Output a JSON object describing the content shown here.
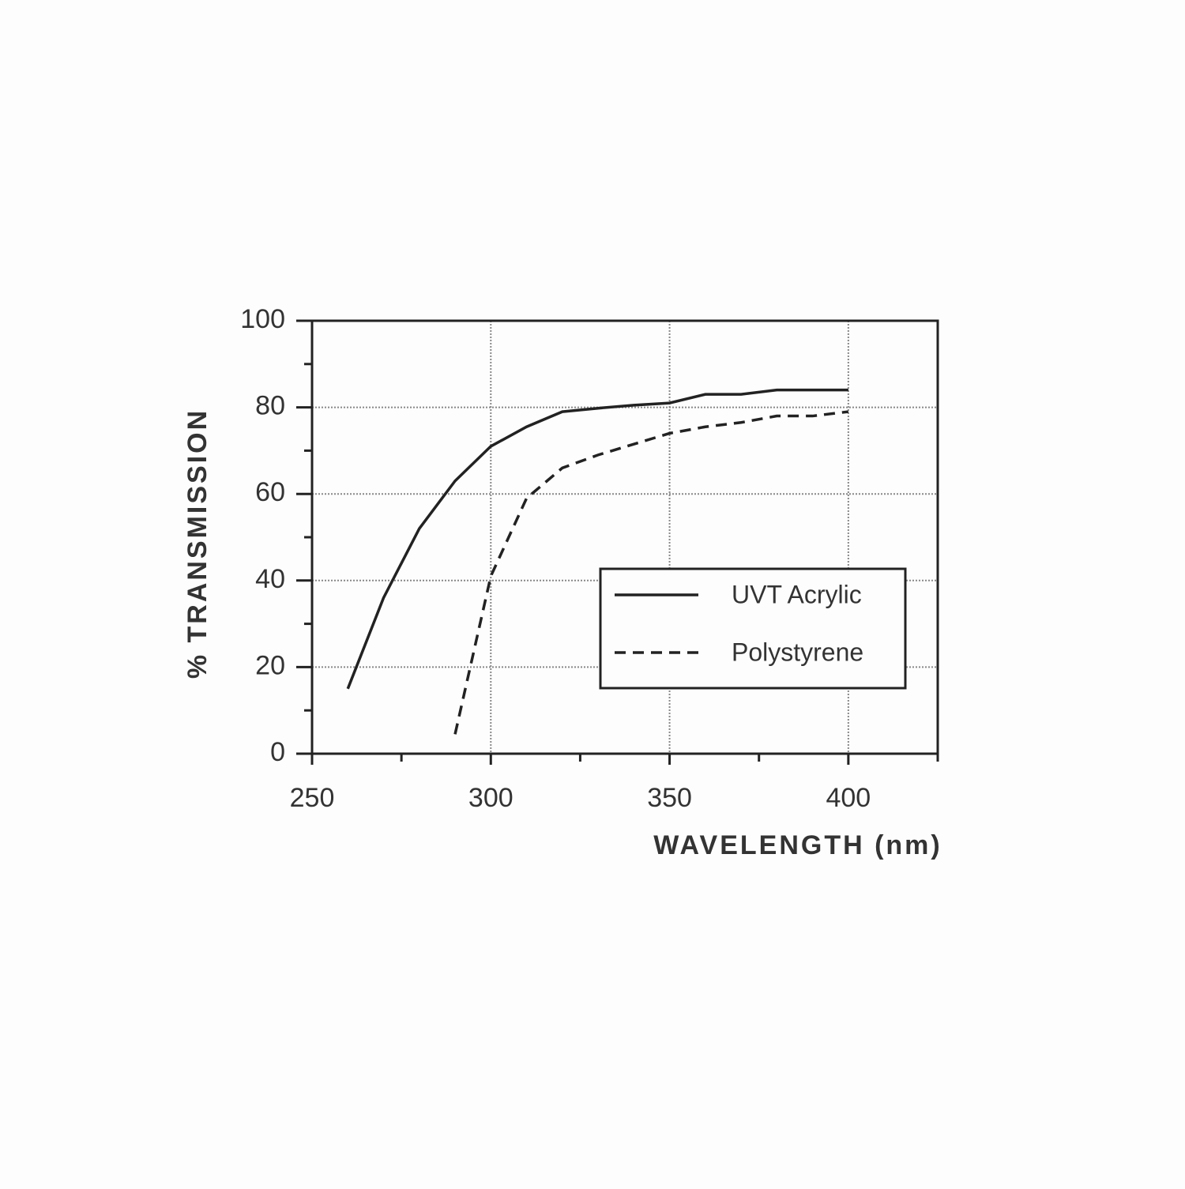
{
  "chart_data": {
    "type": "line",
    "x_label": "WAVELENGTH  (nm)",
    "y_label": "% TRANSMISSION",
    "xlim": [
      250,
      425
    ],
    "xticks": [
      250,
      300,
      350,
      400
    ],
    "ylim": [
      0,
      100
    ],
    "yticks": [
      0,
      20,
      40,
      60,
      80,
      100
    ],
    "grid": true,
    "legend": "lower right",
    "series": [
      {
        "name": "UVT Acrylic",
        "color": "#222222",
        "dash": "solid",
        "x": [
          260,
          270,
          280,
          290,
          300,
          310,
          320,
          330,
          340,
          350,
          360,
          370,
          380,
          390,
          400
        ],
        "values": [
          15,
          36,
          52,
          63,
          71,
          75.5,
          79,
          79.8,
          80.5,
          81,
          83,
          83,
          84,
          84,
          84
        ]
      },
      {
        "name": "Polystyrene",
        "color": "#222222",
        "dash": "dashed",
        "x": [
          290,
          300,
          310,
          320,
          330,
          340,
          350,
          360,
          370,
          380,
          390,
          400
        ],
        "values": [
          4.5,
          41,
          59,
          66,
          69,
          71.5,
          74,
          75.5,
          76.5,
          78,
          78,
          79
        ]
      }
    ]
  }
}
